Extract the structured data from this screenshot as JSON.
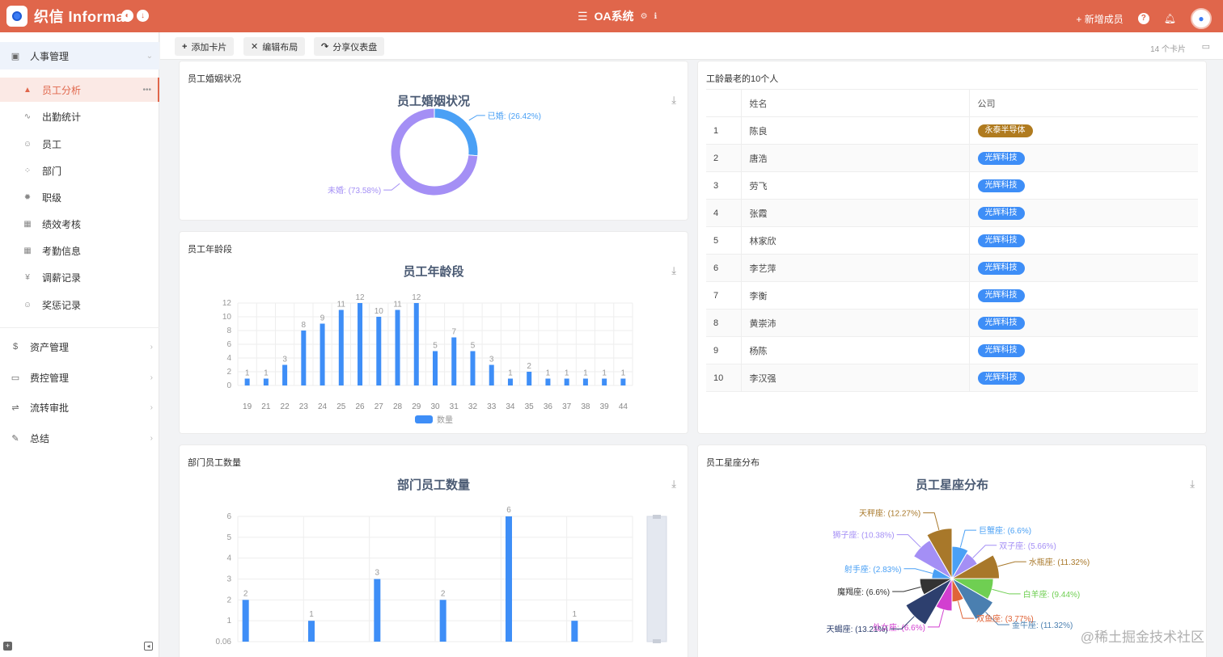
{
  "header": {
    "logo_text": "织信 Informat",
    "app_title": "OA系统",
    "add_member": "新增成员"
  },
  "sidebar": {
    "groups": [
      {
        "label": "人事管理",
        "icon": "person-card-icon"
      },
      {
        "label": "资产管理",
        "icon": "dollar-icon"
      },
      {
        "label": "费控管理",
        "icon": "money-card-icon"
      },
      {
        "label": "流转审批",
        "icon": "flow-icon"
      },
      {
        "label": "总结",
        "icon": "edit-icon"
      }
    ],
    "items": [
      {
        "label": "员工分析",
        "icon": "area-chart-icon"
      },
      {
        "label": "出勤统计",
        "icon": "line-chart-icon"
      },
      {
        "label": "员工",
        "icon": "user-icon"
      },
      {
        "label": "部门",
        "icon": "dots-icon"
      },
      {
        "label": "职级",
        "icon": "gear-icon"
      },
      {
        "label": "绩效考核",
        "icon": "table-icon"
      },
      {
        "label": "考勤信息",
        "icon": "table-icon"
      },
      {
        "label": "调薪记录",
        "icon": "yen-icon"
      },
      {
        "label": "奖惩记录",
        "icon": "smile-icon"
      }
    ]
  },
  "toolbar": {
    "add_card": "添加卡片",
    "edit_layout": "编辑布局",
    "share": "分享仪表盘",
    "card_count": "14 个卡片"
  },
  "cards": {
    "marriage": {
      "title": "员工婚姻状况",
      "chart_title": "员工婚姻状况"
    },
    "seniority": {
      "title": "工龄最老的10个人",
      "columns": [
        "姓名",
        "公司"
      ],
      "rows": [
        {
          "idx": "1",
          "name": "陈良",
          "company": "永泰半导体"
        },
        {
          "idx": "2",
          "name": "唐浩",
          "company": "光辉科技"
        },
        {
          "idx": "3",
          "name": "劳飞",
          "company": "光辉科技"
        },
        {
          "idx": "4",
          "name": "张霞",
          "company": "光辉科技"
        },
        {
          "idx": "5",
          "name": "林家欣",
          "company": "光辉科技"
        },
        {
          "idx": "6",
          "name": "李艺萍",
          "company": "光辉科技"
        },
        {
          "idx": "7",
          "name": "李衡",
          "company": "光辉科技"
        },
        {
          "idx": "8",
          "name": "黄崇沛",
          "company": "光辉科技"
        },
        {
          "idx": "9",
          "name": "杨陈",
          "company": "光辉科技"
        },
        {
          "idx": "10",
          "name": "李汉强",
          "company": "光辉科技"
        }
      ]
    },
    "age": {
      "title": "员工年龄段",
      "chart_title": "员工年龄段"
    },
    "dept": {
      "title": "部门员工数量",
      "chart_title": "部门员工数量"
    },
    "zodiac": {
      "title": "员工星座分布",
      "chart_title": "员工星座分布"
    }
  },
  "colors": {
    "brand": "#e0664b",
    "bar": "#3e8ef7",
    "married": "#4aa0f5",
    "single": "#a48ff5"
  },
  "watermark": "@稀土掘金技术社区",
  "chart_data": [
    {
      "type": "pie",
      "title": "员工婚姻状况",
      "slices": [
        {
          "label": "已婚: (26.42%)",
          "value": 26.42,
          "color": "#4aa0f5"
        },
        {
          "label": "未婚: (73.58%)",
          "value": 73.58,
          "color": "#a48ff5"
        }
      ]
    },
    {
      "type": "bar",
      "title": "员工年龄段",
      "categories": [
        "19",
        "21",
        "22",
        "23",
        "24",
        "25",
        "26",
        "27",
        "28",
        "29",
        "30",
        "31",
        "32",
        "33",
        "34",
        "35",
        "36",
        "37",
        "38",
        "39",
        "44"
      ],
      "series": [
        {
          "name": "数量",
          "values": [
            1,
            1,
            3,
            8,
            9,
            11,
            12,
            10,
            11,
            12,
            5,
            7,
            5,
            3,
            1,
            2,
            1,
            1,
            1,
            1,
            1
          ]
        }
      ],
      "y_ticks": [
        "0",
        "2",
        "4",
        "6",
        "8",
        "10",
        "12"
      ],
      "ylim": [
        0,
        12
      ]
    },
    {
      "type": "bar",
      "title": "部门员工数量",
      "categories": [
        "",
        "",
        "",
        "",
        "",
        ""
      ],
      "values": [
        2,
        1,
        3,
        2,
        6,
        1
      ],
      "y_ticks": [
        "0.06",
        "1",
        "2",
        "3",
        "4",
        "5",
        "6"
      ],
      "ylim": [
        0,
        6
      ]
    },
    {
      "type": "pie",
      "title": "员工星座分布",
      "slices": [
        {
          "label": "巨蟹座: (6.6%)",
          "value": 6.6,
          "color": "#4aa0f5"
        },
        {
          "label": "双子座: (5.66%)",
          "value": 5.66,
          "color": "#a48ff5"
        },
        {
          "label": "水瓶座: (11.32%)",
          "value": 11.32,
          "color": "#a8782a"
        },
        {
          "label": "白羊座: (9.44%)",
          "value": 9.44,
          "color": "#6fcf52"
        },
        {
          "label": "金牛座: (11.32%)",
          "value": 11.32,
          "color": "#4a7fb0"
        },
        {
          "label": "双鱼座: (3.77%)",
          "value": 3.77,
          "color": "#e06438"
        },
        {
          "label": "处女座: (6.6%)",
          "value": 6.6,
          "color": "#d23fd0"
        },
        {
          "label": "天蝎座: (13.21%)",
          "value": 13.21,
          "color": "#2d3f6e"
        },
        {
          "label": "魔羯座: (6.6%)",
          "value": 6.6,
          "color": "#333333"
        },
        {
          "label": "射手座: (2.83%)",
          "value": 2.83,
          "color": "#4aa0f5"
        },
        {
          "label": "狮子座: (10.38%)",
          "value": 10.38,
          "color": "#a48ff5"
        },
        {
          "label": "天秤座: (12.27%)",
          "value": 12.27,
          "color": "#a8782a"
        }
      ]
    }
  ]
}
